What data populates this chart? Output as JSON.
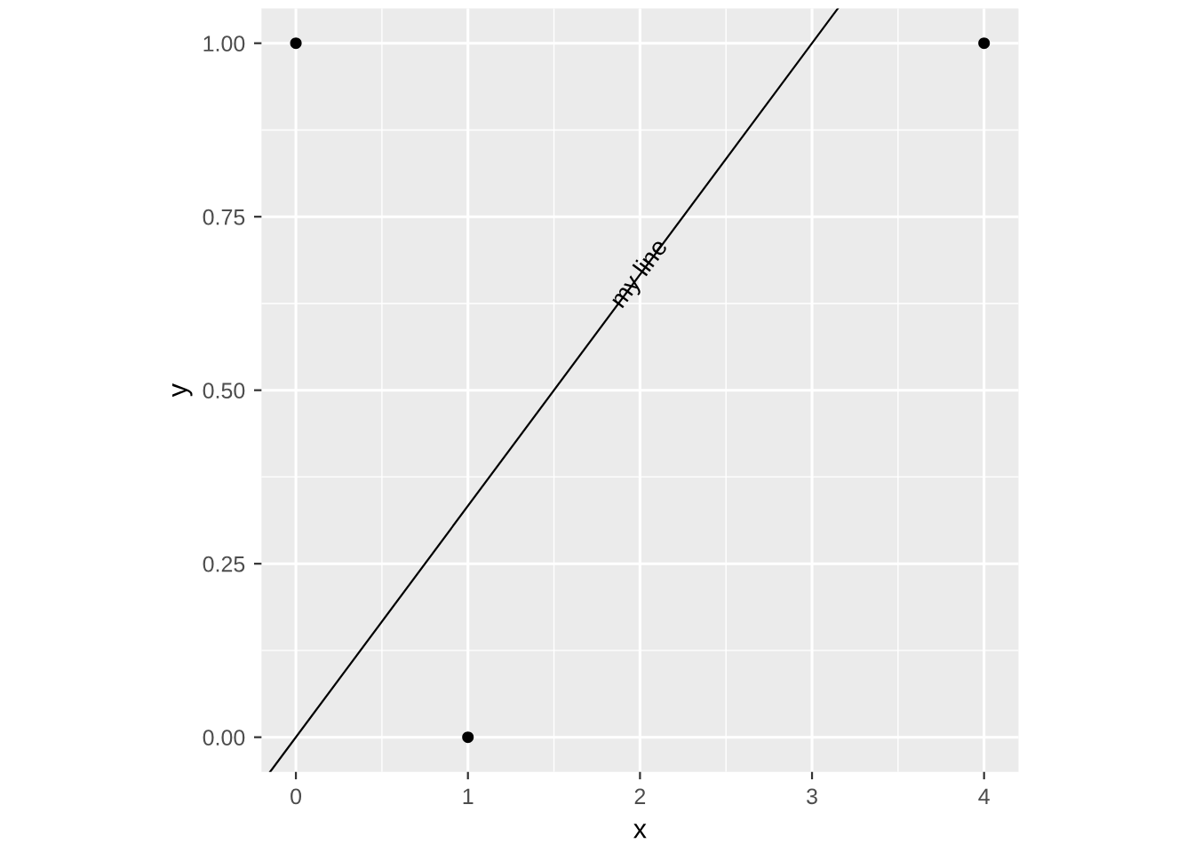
{
  "chart_data": {
    "type": "scatter",
    "xlabel": "x",
    "ylabel": "y",
    "series": [
      {
        "color": "#000000",
        "marker": "circle",
        "x": [
          0,
          1,
          4
        ],
        "values": [
          1,
          0,
          1
        ]
      },
      {
        "type": "line",
        "marker": "none",
        "color": "#000000",
        "x": [
          -0.15,
          3.15
        ],
        "values": [
          -0.05,
          1.05
        ]
      }
    ],
    "annotations": [
      {
        "text": "my line",
        "x": 2,
        "y": 0.667
      }
    ],
    "xlim": [
      -0.2,
      4.2
    ],
    "ylim": [
      -0.05,
      1.05
    ],
    "xticks": [
      0,
      1,
      2,
      3,
      4
    ],
    "yticks": [
      {
        "value": 0,
        "label": "0.00"
      },
      {
        "value": 0.25,
        "label": "0.25"
      },
      {
        "value": 0.5,
        "label": "0.50"
      },
      {
        "value": 0.75,
        "label": "0.75"
      },
      {
        "value": 1,
        "label": "1.00"
      }
    ],
    "grid": true
  }
}
